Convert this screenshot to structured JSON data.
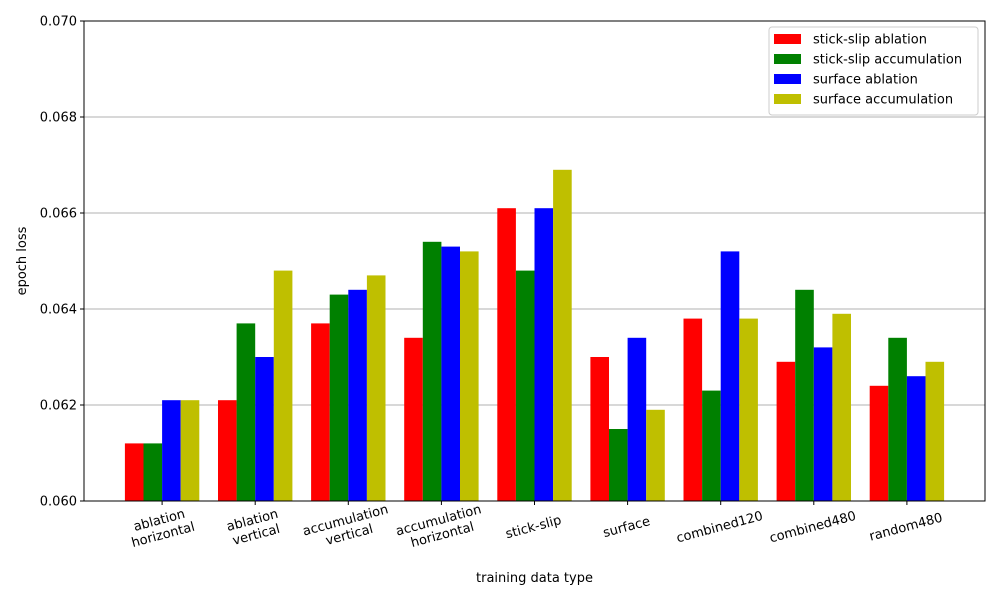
{
  "chart_data": {
    "type": "bar",
    "title": "",
    "xlabel": "training data type",
    "ylabel": "epoch loss",
    "ylim": [
      0.06,
      0.07
    ],
    "yticks": [
      "0.060",
      "0.062",
      "0.064",
      "0.066",
      "0.068",
      "0.070"
    ],
    "grid": "horizontal",
    "legend_position": "top-right",
    "categories": [
      [
        "ablation",
        "horizontal"
      ],
      [
        "ablation",
        "vertical"
      ],
      [
        "accumulation",
        "vertical"
      ],
      [
        "accumulation",
        "horizontal"
      ],
      [
        "stick-slip"
      ],
      [
        "surface"
      ],
      [
        "combined120"
      ],
      [
        "combined480"
      ],
      [
        "random480"
      ]
    ],
    "series": [
      {
        "name": "stick-slip ablation",
        "color": "#ff0000",
        "values": [
          0.0612,
          0.0621,
          0.0637,
          0.0634,
          0.0661,
          0.063,
          0.0638,
          0.0629,
          0.0624
        ]
      },
      {
        "name": "stick-slip accumulation",
        "color": "#008000",
        "values": [
          0.0612,
          0.0637,
          0.0643,
          0.0654,
          0.0648,
          0.0615,
          0.0623,
          0.0644,
          0.0634
        ]
      },
      {
        "name": "surface ablation",
        "color": "#0000ff",
        "values": [
          0.0621,
          0.063,
          0.0644,
          0.0653,
          0.0661,
          0.0634,
          0.0652,
          0.0632,
          0.0626
        ]
      },
      {
        "name": "surface accumulation",
        "color": "#bfbf00",
        "values": [
          0.0621,
          0.0648,
          0.0647,
          0.0652,
          0.0669,
          0.0619,
          0.0638,
          0.0639,
          0.0629
        ]
      }
    ]
  }
}
